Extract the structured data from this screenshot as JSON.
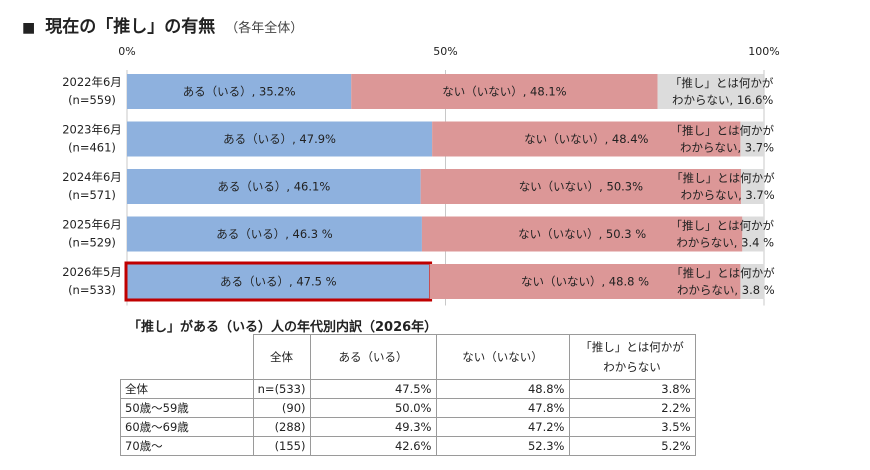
{
  "header": {
    "mark": "■",
    "title": "現在の「推し」の有無",
    "subtitle": "（各年全体）"
  },
  "chart_data": {
    "type": "bar",
    "stacked": true,
    "orientation": "horizontal",
    "xlim": [
      0,
      100
    ],
    "x_ticks": [
      "0%",
      "50%",
      "100%"
    ],
    "categories": [
      {
        "year": "2022年6月",
        "n": "(n=559)"
      },
      {
        "year": "2023年6月",
        "n": "(n=461)"
      },
      {
        "year": "2024年6月",
        "n": "(n=571)"
      },
      {
        "year": "2025年6月",
        "n": "(n=529)"
      },
      {
        "year": "2026年5月",
        "n": "(n=533)"
      }
    ],
    "series": [
      {
        "key": "aru",
        "color": "#8eb1de",
        "values": [
          35.2,
          47.9,
          46.1,
          46.3,
          47.5
        ],
        "labels": [
          "ある（いる）, 35.2%",
          "ある（いる）, 47.9%",
          "ある（いる）, 46.1%",
          "ある（いる）, 46.3 %",
          "ある（いる）, 47.5 %"
        ]
      },
      {
        "key": "nai",
        "color": "#dc9797",
        "values": [
          48.1,
          48.4,
          50.3,
          50.3,
          48.8
        ],
        "labels": [
          "ない（いない）, 48.1%",
          "ない（いない）, 48.4%",
          "ない（いない）, 50.3%",
          "ない（いない）, 50.3 %",
          "ない（いない）, 48.8 %"
        ]
      },
      {
        "key": "wakaranai",
        "color": "#dcdcdc",
        "values": [
          16.6,
          3.7,
          3.7,
          3.4,
          3.8
        ],
        "labels_line1": [
          "「推し」とは何かが",
          "「推し」とは何かが",
          "「推し」とは何かが",
          "「推し」とは何かが",
          "「推し」とは何かが"
        ],
        "labels_line2": [
          "わからない, 16.6%",
          "わからない, 3.7%",
          "わからない, 3.7%",
          "わからない, 3.4 %",
          "わからない, 3.8 %"
        ]
      }
    ],
    "highlight": {
      "row": 4,
      "series": "aru",
      "color": "#c00000"
    }
  },
  "breakdown": {
    "title": "「推し」がある（いる）人の年代別内訳（2026年）",
    "columns": [
      "全体",
      "ある（いる）",
      "ない（いない）",
      "「推し」とは何かが わからない"
    ],
    "col_last_line1": "「推し」とは何かが",
    "col_last_line2": "わからない",
    "rows": [
      {
        "label": "全体",
        "n": "n=(533)",
        "aru": "47.5%",
        "nai": "48.8%",
        "wakaranai": "3.8%"
      },
      {
        "label": "50歳〜59歳",
        "n": "(90)",
        "aru": "50.0%",
        "nai": "47.8%",
        "wakaranai": "2.2%"
      },
      {
        "label": "60歳〜69歳",
        "n": "(288)",
        "aru": "49.3%",
        "nai": "47.2%",
        "wakaranai": "3.5%"
      },
      {
        "label": "70歳〜",
        "n": "(155)",
        "aru": "42.6%",
        "nai": "52.3%",
        "wakaranai": "5.2%"
      }
    ]
  }
}
